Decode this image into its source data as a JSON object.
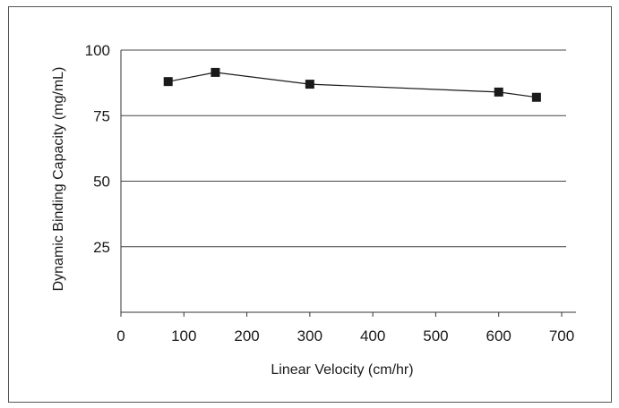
{
  "chart_data": {
    "type": "line",
    "title": "",
    "xlabel": "Linear Velocity (cm/hr)",
    "ylabel": "Dynamic Binding Capacity (mg/mL)",
    "xlim": [
      0,
      700
    ],
    "ylim": [
      0,
      100
    ],
    "x_ticks": [
      "0",
      "100",
      "200",
      "300",
      "400",
      "500",
      "600",
      "700"
    ],
    "y_ticks": [
      "25",
      "50",
      "75",
      "100"
    ],
    "grid": "horizontal",
    "legend": "none",
    "marker": "square",
    "color": "#1a1a1a",
    "series": [
      {
        "x": [
          75,
          150,
          300,
          600,
          660
        ],
        "y": [
          88,
          91.5,
          87,
          84,
          82
        ]
      }
    ]
  }
}
